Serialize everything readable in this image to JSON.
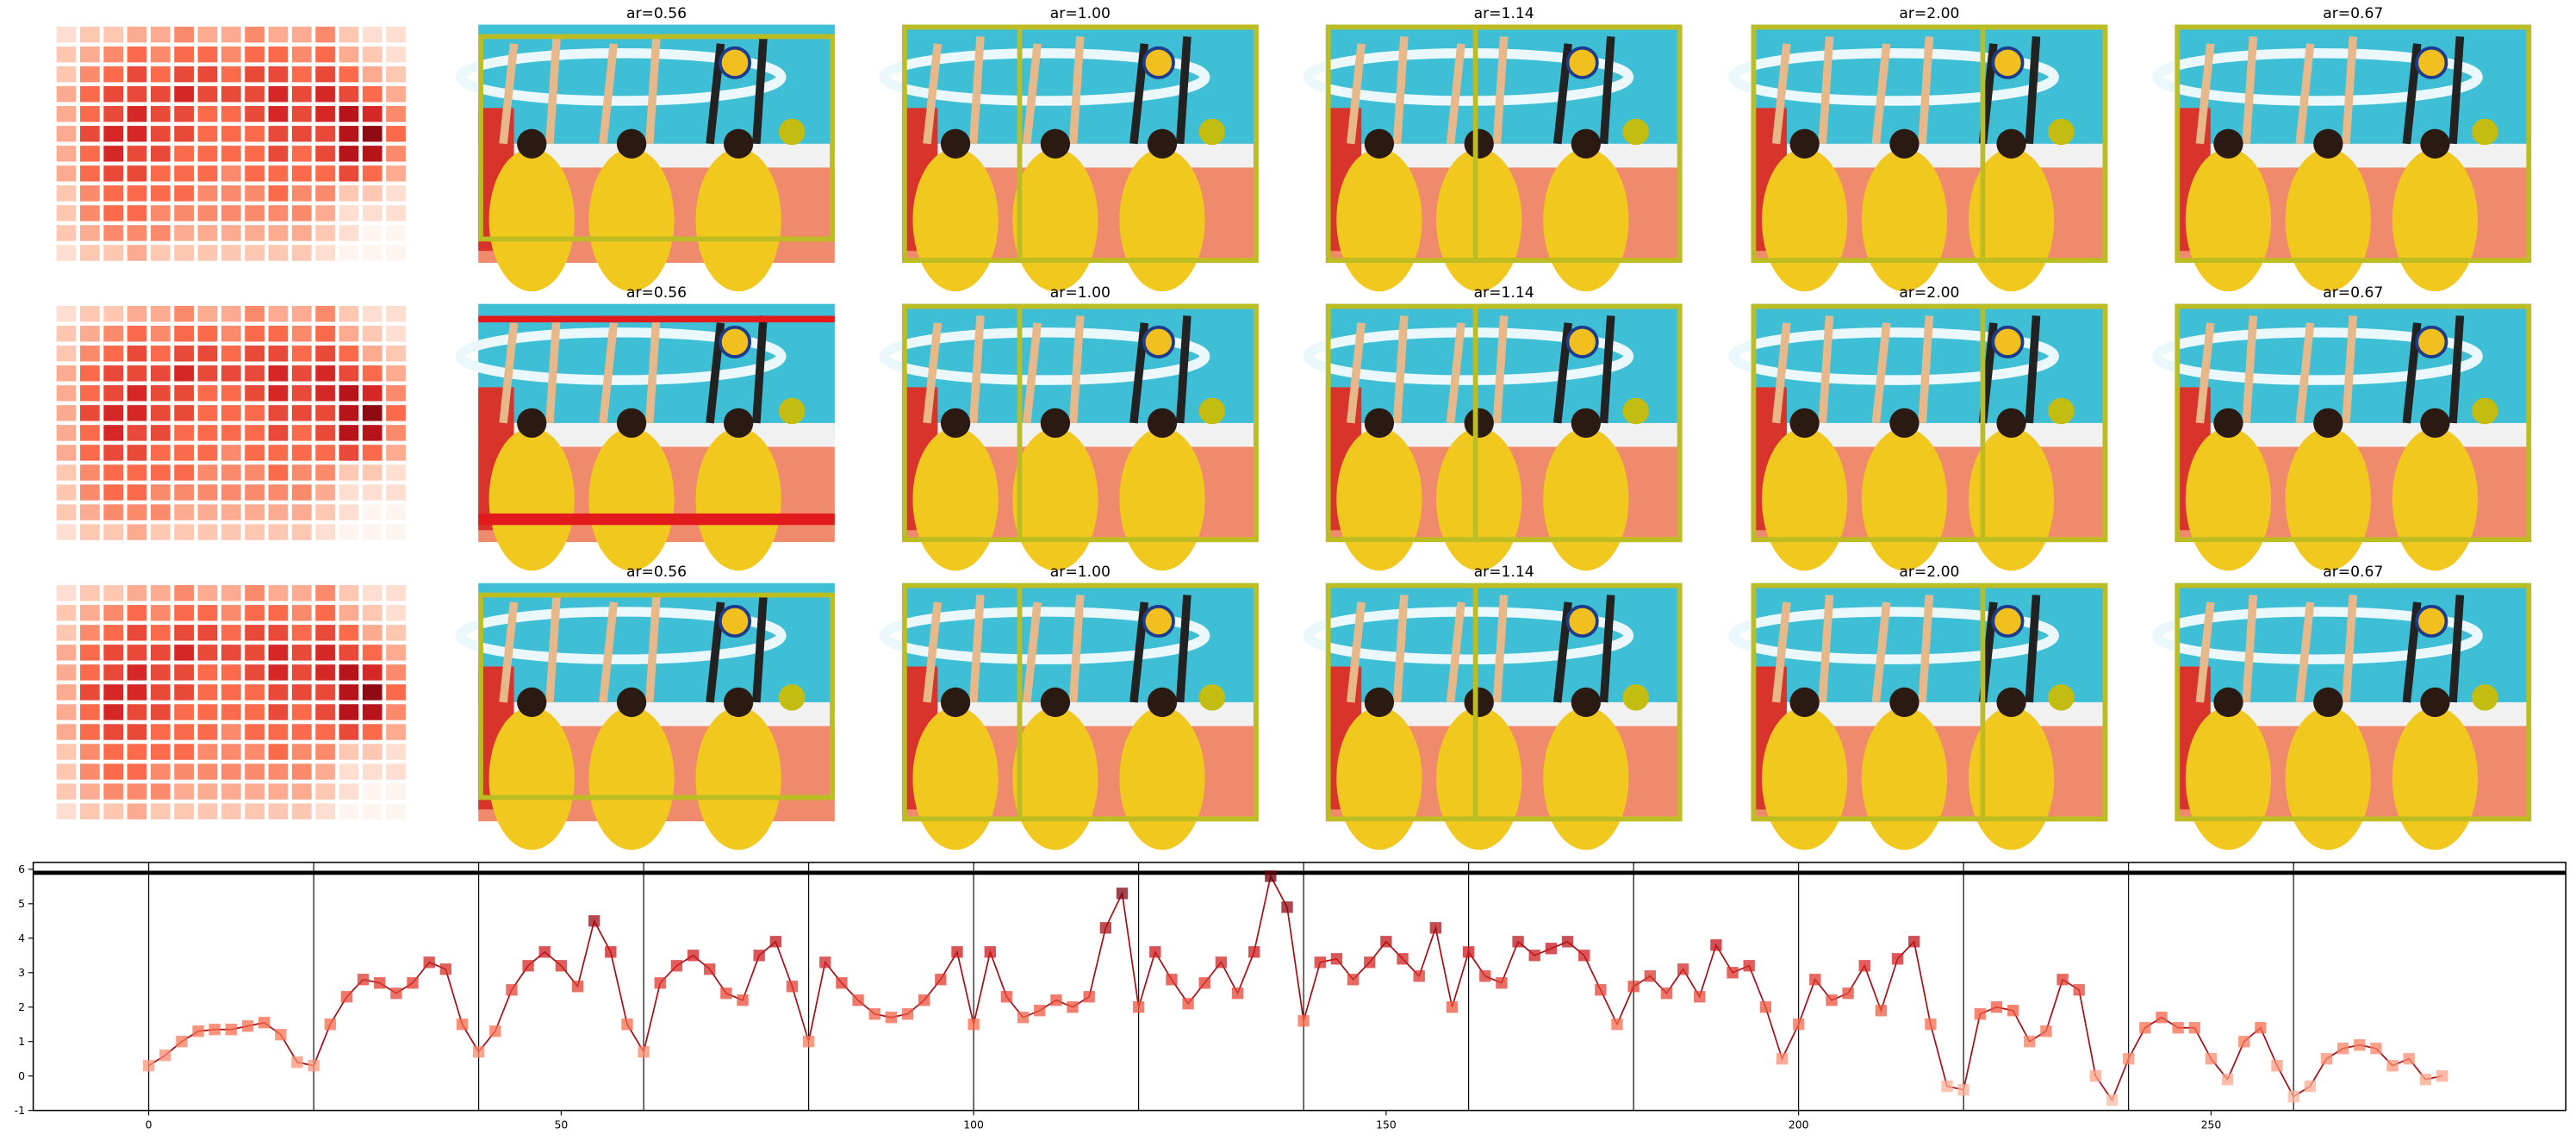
{
  "heatmap": {
    "values": [
      [
        1,
        2,
        2,
        3,
        3,
        4,
        3,
        3,
        4,
        3,
        3,
        4,
        2,
        1,
        1
      ],
      [
        2,
        3,
        4,
        5,
        4,
        5,
        5,
        4,
        5,
        5,
        4,
        5,
        3,
        2,
        1
      ],
      [
        2,
        4,
        5,
        6,
        5,
        6,
        6,
        5,
        6,
        6,
        5,
        6,
        5,
        3,
        2
      ],
      [
        3,
        5,
        6,
        6,
        6,
        7,
        6,
        6,
        6,
        7,
        6,
        7,
        6,
        5,
        3
      ],
      [
        3,
        5,
        6,
        7,
        6,
        6,
        5,
        5,
        6,
        7,
        6,
        7,
        8,
        7,
        4
      ],
      [
        3,
        6,
        7,
        7,
        6,
        6,
        5,
        5,
        5,
        6,
        6,
        6,
        8,
        9,
        5
      ],
      [
        3,
        5,
        7,
        6,
        6,
        5,
        5,
        5,
        5,
        6,
        5,
        6,
        8,
        8,
        4
      ],
      [
        3,
        5,
        6,
        6,
        5,
        5,
        5,
        4,
        5,
        5,
        5,
        5,
        6,
        5,
        3
      ],
      [
        2,
        4,
        5,
        5,
        5,
        5,
        4,
        4,
        4,
        5,
        4,
        4,
        2,
        2,
        1
      ],
      [
        2,
        4,
        5,
        5,
        4,
        4,
        4,
        4,
        4,
        4,
        4,
        3,
        1,
        1,
        1
      ],
      [
        2,
        3,
        4,
        4,
        4,
        3,
        3,
        3,
        3,
        3,
        3,
        2,
        1,
        0,
        0
      ],
      [
        1,
        2,
        2,
        3,
        2,
        2,
        2,
        2,
        2,
        2,
        2,
        1,
        0,
        0,
        0
      ]
    ]
  },
  "panel_titles": [
    [
      "ar=0.56",
      "ar=1.00",
      "ar=1.14",
      "ar=2.00",
      "ar=0.67"
    ],
    [
      "ar=0.56",
      "ar=1.00",
      "ar=1.14",
      "ar=2.00",
      "ar=0.67"
    ],
    [
      "ar=0.56",
      "ar=1.00",
      "ar=1.14",
      "ar=2.00",
      "ar=0.67"
    ]
  ],
  "chart_data": {
    "type": "line",
    "x": [
      0,
      2,
      4,
      6,
      8,
      10,
      12,
      14,
      16,
      18,
      20,
      22,
      24,
      26,
      28,
      30,
      32,
      34,
      36,
      38,
      40,
      42,
      44,
      46,
      48,
      50,
      52,
      54,
      56,
      58,
      60,
      62,
      64,
      66,
      68,
      70,
      72,
      74,
      76,
      78,
      80,
      82,
      84,
      86,
      88,
      90,
      92,
      94,
      96,
      98,
      100,
      102,
      104,
      106,
      108,
      110,
      112,
      114,
      116,
      118,
      120,
      122,
      124,
      126,
      128,
      130,
      132,
      134,
      136,
      138,
      140,
      142,
      144,
      146,
      148,
      150,
      152,
      154,
      156,
      158,
      160,
      162,
      164,
      166,
      168,
      170,
      172,
      174,
      176,
      178,
      180,
      182,
      184,
      186,
      188,
      190,
      192,
      194,
      196,
      198,
      200,
      202,
      204,
      206,
      208,
      210,
      212,
      214,
      216,
      218,
      220,
      222,
      224,
      226,
      228,
      230,
      232,
      234,
      236,
      238,
      240,
      242,
      244,
      246,
      248,
      250,
      252,
      254,
      256,
      258,
      260,
      262,
      264,
      266,
      268,
      270,
      272,
      274,
      276,
      278
    ],
    "values": [
      0.3,
      0.6,
      1.0,
      1.3,
      1.35,
      1.35,
      1.45,
      1.55,
      1.2,
      0.4,
      0.3,
      1.5,
      2.3,
      2.8,
      2.7,
      2.4,
      2.7,
      3.3,
      3.1,
      1.5,
      0.7,
      1.3,
      2.5,
      3.2,
      3.6,
      3.2,
      2.6,
      4.5,
      3.6,
      1.5,
      0.7,
      2.7,
      3.2,
      3.5,
      3.1,
      2.4,
      2.2,
      3.5,
      3.9,
      2.6,
      1.0,
      3.3,
      2.7,
      2.2,
      1.8,
      1.7,
      1.8,
      2.2,
      2.8,
      3.6,
      1.5,
      3.6,
      2.3,
      1.7,
      1.9,
      2.2,
      2.0,
      2.3,
      4.3,
      5.3,
      2.0,
      3.6,
      2.8,
      2.1,
      2.7,
      3.3,
      2.4,
      3.6,
      5.8,
      4.9,
      1.6,
      3.3,
      3.4,
      2.8,
      3.3,
      3.9,
      3.4,
      2.9,
      4.3,
      2.0,
      3.6,
      2.9,
      2.7,
      3.9,
      3.5,
      3.7,
      3.9,
      3.5,
      2.5,
      1.5,
      2.6,
      2.9,
      2.4,
      3.1,
      2.3,
      3.8,
      3.0,
      3.2,
      2.0,
      0.5,
      1.5,
      2.8,
      2.2,
      2.4,
      3.2,
      1.9,
      3.4,
      3.9,
      1.5,
      -0.3,
      -0.4,
      1.8,
      2.0,
      1.9,
      1.0,
      1.3,
      2.8,
      2.5,
      0.0,
      -0.7,
      0.5,
      1.4,
      1.7,
      1.4,
      1.4,
      0.5,
      -0.1,
      1.0,
      1.4,
      0.3,
      -0.6,
      -0.3,
      0.5,
      0.8,
      0.9,
      0.8,
      0.3,
      0.5,
      -0.1,
      0.0
    ],
    "xlim": [
      -14,
      293
    ],
    "ylim": [
      -1,
      6.2
    ],
    "xticks": [
      0,
      50,
      100,
      150,
      200,
      250
    ],
    "yticks": [
      -1,
      0,
      1,
      2,
      3,
      4,
      5,
      6
    ],
    "vlines": [
      0,
      20,
      40,
      60,
      80,
      100,
      120,
      140,
      160,
      180,
      200,
      220,
      240,
      260
    ],
    "hline": 5.9,
    "line_color": "#a50f15",
    "colormap": "Reds"
  }
}
